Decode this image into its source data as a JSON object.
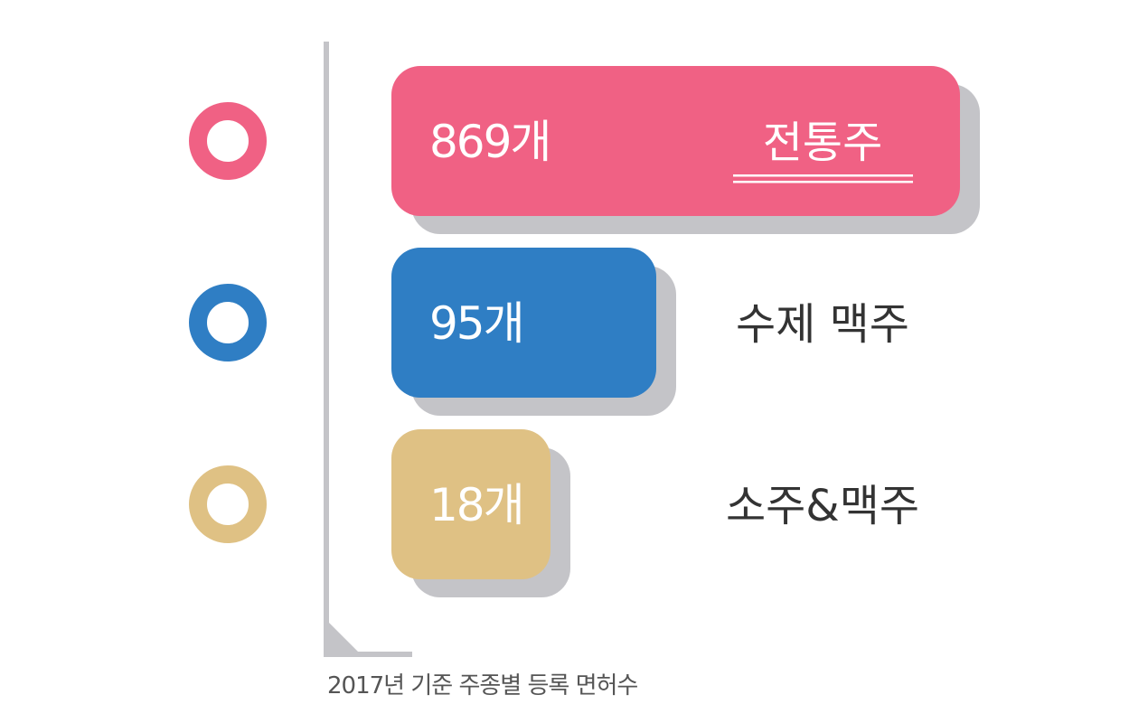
{
  "chart_data": {
    "type": "bar",
    "orientation": "horizontal",
    "categories": [
      "전통주",
      "수제 맥주",
      "소주&맥주"
    ],
    "values": [
      869,
      95,
      18
    ],
    "value_labels": [
      "869개",
      "95개",
      "18개"
    ],
    "colors": [
      "#f06184",
      "#2f7ec4",
      "#dfc184"
    ],
    "highlighted_category": "전통주",
    "xlabel": "",
    "ylabel": "",
    "note": "2017년 기준 주종별 등록 면허수",
    "legend": "none",
    "grid": false
  },
  "style": {
    "shadow_color": "#c4c4c8",
    "axis_color": "#c4c4c8",
    "label_color": "#333333",
    "value_label_color": "#ffffff"
  }
}
